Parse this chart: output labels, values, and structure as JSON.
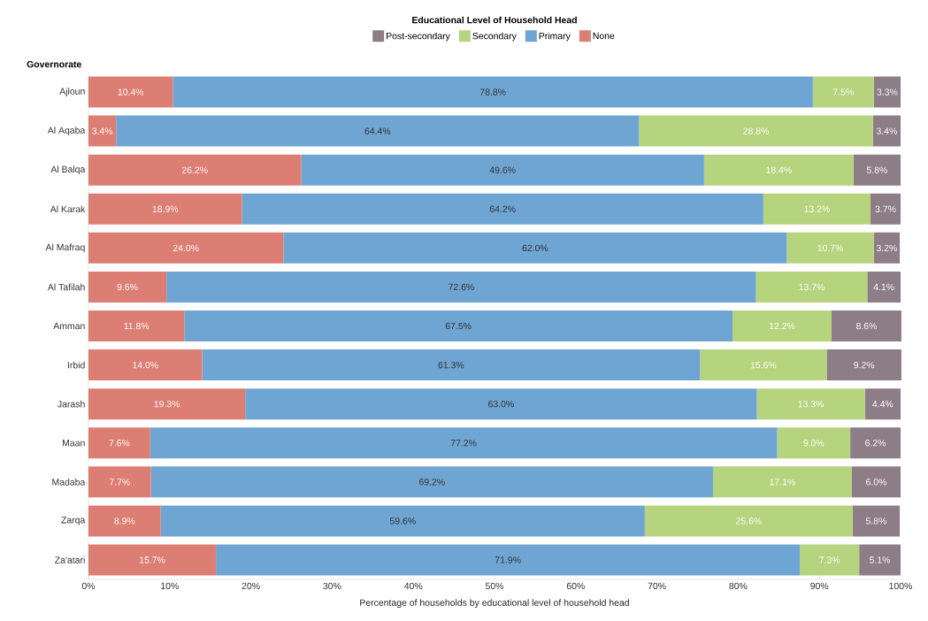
{
  "chart_data": {
    "type": "bar",
    "orientation": "horizontal",
    "stacked": true,
    "legend_title": "Educational Level of Household Head",
    "ylabel": "Governorate",
    "xlabel": "Percentage of households by educational level of household head",
    "categories": [
      "Ajloun",
      "Al Aqaba",
      "Al Balqa",
      "Al Karak",
      "Al Mafraq",
      "Al Tafilah",
      "Amman",
      "Irbid",
      "Jarash",
      "Maan",
      "Madaba",
      "Zarqa",
      "Za'atari"
    ],
    "series": [
      {
        "name": "None",
        "color": "#dd7e74",
        "values": [
          10.4,
          3.4,
          26.2,
          18.9,
          24.0,
          9.6,
          11.8,
          14.0,
          19.3,
          7.6,
          7.7,
          8.9,
          15.7
        ],
        "value_labels": [
          "10.4%",
          "3.4%",
          "26.2%",
          "18.9%",
          "24.0%",
          "9.6%",
          "11.8%",
          "14.0%",
          "19.3%",
          "7.6%",
          "7.7%",
          "8.9%",
          "15.7%"
        ]
      },
      {
        "name": "Primary",
        "color": "#6fa5d3",
        "values": [
          78.8,
          64.4,
          49.6,
          64.2,
          62.0,
          72.6,
          67.5,
          61.3,
          63.0,
          77.2,
          69.2,
          59.6,
          71.9
        ],
        "value_labels": [
          "78.8%",
          "64.4%",
          "49.6%",
          "64.2%",
          "62.0%",
          "72.6%",
          "67.5%",
          "61.3%",
          "63.0%",
          "77.2%",
          "69.2%",
          "59.6%",
          "71.9%"
        ]
      },
      {
        "name": "Secondary",
        "color": "#b6d37e",
        "values": [
          7.5,
          28.8,
          18.4,
          13.2,
          10.7,
          13.7,
          12.2,
          15.6,
          13.3,
          9.0,
          17.1,
          25.6,
          7.3
        ],
        "value_labels": [
          "7.5%",
          "28.8%",
          "18.4%",
          "13.2%",
          "10.7%",
          "13.7%",
          "12.2%",
          "15.6%",
          "13.3%",
          "9.0%",
          "17.1%",
          "25.6%",
          "7.3%"
        ]
      },
      {
        "name": "Post-secondary",
        "color": "#8c7d87",
        "values": [
          3.3,
          3.4,
          5.8,
          3.7,
          3.2,
          4.1,
          8.6,
          9.2,
          4.4,
          6.2,
          6.0,
          5.8,
          5.1
        ],
        "value_labels": [
          "3.3%",
          "3.4%",
          "5.8%",
          "3.7%",
          "3.2%",
          "4.1%",
          "8.6%",
          "9.2%",
          "4.4%",
          "6.2%",
          "6.0%",
          "5.8%",
          "5.1%"
        ]
      }
    ],
    "xlim": [
      0,
      100
    ],
    "xticks": [
      {
        "value": 0,
        "label": "0%"
      },
      {
        "value": 10,
        "label": "10%"
      },
      {
        "value": 20,
        "label": "20%"
      },
      {
        "value": 30,
        "label": "30%"
      },
      {
        "value": 40,
        "label": "40%"
      },
      {
        "value": 50,
        "label": "50%"
      },
      {
        "value": 60,
        "label": "60%"
      },
      {
        "value": 70,
        "label": "70%"
      },
      {
        "value": 80,
        "label": "80%"
      },
      {
        "value": 90,
        "label": "90%"
      },
      {
        "value": 100,
        "label": "100%"
      }
    ],
    "legend": "top",
    "grid": false
  }
}
